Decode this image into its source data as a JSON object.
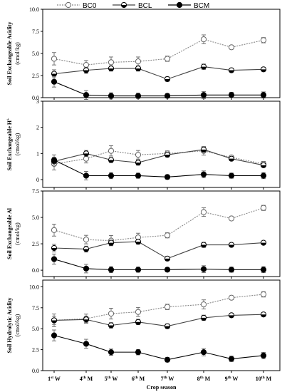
{
  "chart_data": [
    {
      "type": "line",
      "ylabel": "Soil Exchangeable Acidity",
      "yunit": "(cmol/kg)",
      "ylim": [
        0,
        10
      ],
      "yticks": [
        "0.0",
        "2.5",
        "5.0",
        "7.5",
        "10.0"
      ],
      "series": [
        {
          "name": "BC0",
          "values": [
            4.4,
            3.7,
            4.0,
            4.1,
            4.4,
            6.6,
            5.7,
            6.5
          ]
        },
        {
          "name": "BCL",
          "values": [
            2.7,
            3.1,
            3.3,
            3.3,
            2.1,
            3.5,
            3.1,
            3.2
          ]
        },
        {
          "name": "BCM",
          "values": [
            1.8,
            0.3,
            0.2,
            0.2,
            0.2,
            0.3,
            0.3,
            0.3
          ]
        }
      ]
    },
    {
      "type": "line",
      "ylabel": "Soil Exchangeable H",
      "ysup": "+",
      "yunit": "(cmol/kg)",
      "ylim": [
        -0.3,
        3
      ],
      "yticks": [
        "0",
        "1",
        "2",
        "3"
      ],
      "series": [
        {
          "name": "BC0",
          "values": [
            0.6,
            0.8,
            1.1,
            0.95,
            1.0,
            1.1,
            0.85,
            0.6
          ]
        },
        {
          "name": "BCL",
          "values": [
            0.7,
            1.0,
            0.75,
            0.65,
            0.95,
            1.15,
            0.8,
            0.55
          ]
        },
        {
          "name": "BCM",
          "values": [
            0.75,
            0.15,
            0.15,
            0.15,
            0.1,
            0.2,
            0.15,
            0.15
          ]
        }
      ]
    },
    {
      "type": "line",
      "ylabel": "Soil Exchangeable Al",
      "yunit": "(cmol/kg)",
      "ylim": [
        -0.6,
        7.5
      ],
      "yticks": [
        "0.0",
        "2.5",
        "5.0",
        "7.5"
      ],
      "series": [
        {
          "name": "BC0",
          "values": [
            3.8,
            2.9,
            2.8,
            3.1,
            3.3,
            5.5,
            4.9,
            5.9
          ]
        },
        {
          "name": "BCL",
          "values": [
            2.1,
            2.0,
            2.6,
            2.7,
            1.1,
            2.4,
            2.4,
            2.6
          ]
        },
        {
          "name": "BCM",
          "values": [
            1.05,
            0.15,
            0.05,
            0.05,
            0.05,
            0.1,
            0.05,
            0.05
          ]
        }
      ]
    },
    {
      "type": "line",
      "ylabel": "Soil Hydrolytic Acidity",
      "yunit": "(cmol/kg)",
      "ylim": [
        0,
        10.8
      ],
      "yticks": [
        "0.0",
        "2.5",
        "5.0",
        "7.5",
        "10.0"
      ],
      "xlabel": "Crop season",
      "categories": [
        {
          "n": "1",
          "sup": "st",
          "s": "W"
        },
        {
          "n": "4",
          "sup": "th",
          "s": "M"
        },
        {
          "n": "5",
          "sup": "th",
          "s": "W"
        },
        {
          "n": "6",
          "sup": "th",
          "s": "M"
        },
        {
          "n": "7",
          "sup": "th",
          "s": "W"
        },
        {
          "n": "8",
          "sup": "th",
          "s": "M"
        },
        {
          "n": "9",
          "sup": "th",
          "s": "W"
        },
        {
          "n": "10",
          "sup": "th",
          "s": "M"
        }
      ],
      "series": [
        {
          "name": "BC0",
          "values": [
            6.0,
            6.2,
            6.8,
            7.0,
            7.6,
            7.9,
            8.7,
            9.1
          ]
        },
        {
          "name": "BCL",
          "values": [
            6.0,
            6.1,
            5.4,
            5.8,
            5.3,
            6.3,
            6.6,
            6.7
          ]
        },
        {
          "name": "BCM",
          "values": [
            4.2,
            3.2,
            2.2,
            2.2,
            1.3,
            2.2,
            1.4,
            1.8
          ]
        }
      ]
    }
  ],
  "legend": {
    "position": "top",
    "items": [
      {
        "label": "BC0",
        "marker": "open-circle"
      },
      {
        "label": "BCL",
        "marker": "half-filled-circle"
      },
      {
        "label": "BCM",
        "marker": "filled-circle"
      }
    ]
  }
}
